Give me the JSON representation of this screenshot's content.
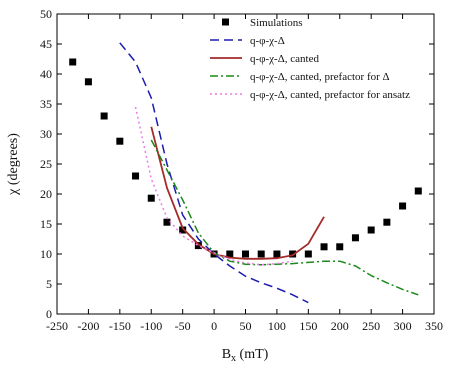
{
  "chart_data": {
    "type": "line",
    "title": "",
    "xlabel": "B",
    "xlabel_sub": "x",
    "xlabel_unit": " (mT)",
    "ylabel": "χ (degrees)",
    "xlim": [
      -250,
      350
    ],
    "ylim": [
      0,
      50
    ],
    "xticks": [
      -250,
      -200,
      -150,
      -100,
      -50,
      0,
      50,
      100,
      150,
      200,
      250,
      300,
      350
    ],
    "yticks": [
      0,
      5,
      10,
      15,
      20,
      25,
      30,
      35,
      40,
      45,
      50
    ],
    "grid": false,
    "legend_position": "top-right",
    "series": [
      {
        "name": "Simulations",
        "style": "markers",
        "marker": "square",
        "color": "#000000",
        "points": [
          [
            -225,
            42
          ],
          [
            -200,
            38.7
          ],
          [
            -175,
            33
          ],
          [
            -150,
            28.8
          ],
          [
            -125,
            23
          ],
          [
            -100,
            19.3
          ],
          [
            -75,
            15.3
          ],
          [
            -50,
            14
          ],
          [
            -25,
            11.4
          ],
          [
            0,
            10
          ],
          [
            25,
            10
          ],
          [
            50,
            10
          ],
          [
            75,
            10
          ],
          [
            100,
            10
          ],
          [
            125,
            10
          ],
          [
            150,
            10
          ],
          [
            175,
            11.2
          ],
          [
            200,
            11.2
          ],
          [
            225,
            12.7
          ],
          [
            250,
            14
          ],
          [
            275,
            15.3
          ],
          [
            300,
            18
          ],
          [
            325,
            20.5
          ]
        ]
      },
      {
        "name": "q-φ-χ-Δ",
        "style": "dash",
        "color": "#1c1cb0",
        "points": [
          [
            -150,
            45.2
          ],
          [
            -125,
            42
          ],
          [
            -100,
            36
          ],
          [
            -75,
            25
          ],
          [
            -50,
            16.5
          ],
          [
            -25,
            12.5
          ],
          [
            0,
            10
          ],
          [
            25,
            8
          ],
          [
            50,
            6.3
          ],
          [
            75,
            5.2
          ],
          [
            100,
            4.3
          ],
          [
            125,
            3.2
          ],
          [
            150,
            1.9
          ]
        ]
      },
      {
        "name": "q-φ-χ-Δ, canted",
        "style": "solid",
        "color": "#a52a2a",
        "points": [
          [
            -100,
            31.2
          ],
          [
            -75,
            21
          ],
          [
            -50,
            14.3
          ],
          [
            -25,
            11.6
          ],
          [
            0,
            10
          ],
          [
            25,
            9.4
          ],
          [
            50,
            9.2
          ],
          [
            75,
            9.2
          ],
          [
            100,
            9.3
          ],
          [
            125,
            9.8
          ],
          [
            150,
            11.7
          ],
          [
            175,
            16.2
          ]
        ]
      },
      {
        "name": "q-φ-χ-Δ, canted, prefactor for Δ",
        "style": "dashdot",
        "color": "#1a8a1a",
        "points": [
          [
            -100,
            29
          ],
          [
            -75,
            24
          ],
          [
            -50,
            19
          ],
          [
            -25,
            13.5
          ],
          [
            0,
            10.2
          ],
          [
            25,
            8.8
          ],
          [
            50,
            8.3
          ],
          [
            75,
            8.2
          ],
          [
            100,
            8.3
          ],
          [
            125,
            8.4
          ],
          [
            150,
            8.6
          ],
          [
            175,
            8.8
          ],
          [
            200,
            8.8
          ],
          [
            225,
            8
          ],
          [
            250,
            6.4
          ],
          [
            275,
            5.2
          ],
          [
            300,
            4.1
          ],
          [
            325,
            3.2
          ]
        ]
      },
      {
        "name": "q-φ-χ-Δ, canted, prefactor for ansatz",
        "style": "dot",
        "color": "#ee7be6",
        "points": [
          [
            -125,
            34.5
          ],
          [
            -100,
            22.5
          ],
          [
            -75,
            16
          ],
          [
            -50,
            13
          ],
          [
            -25,
            11.4
          ],
          [
            0,
            10.2
          ],
          [
            25,
            9.1
          ],
          [
            50,
            8.5
          ],
          [
            75,
            8.2
          ],
          [
            100,
            8.4
          ],
          [
            125,
            8.8
          ]
        ]
      }
    ]
  }
}
